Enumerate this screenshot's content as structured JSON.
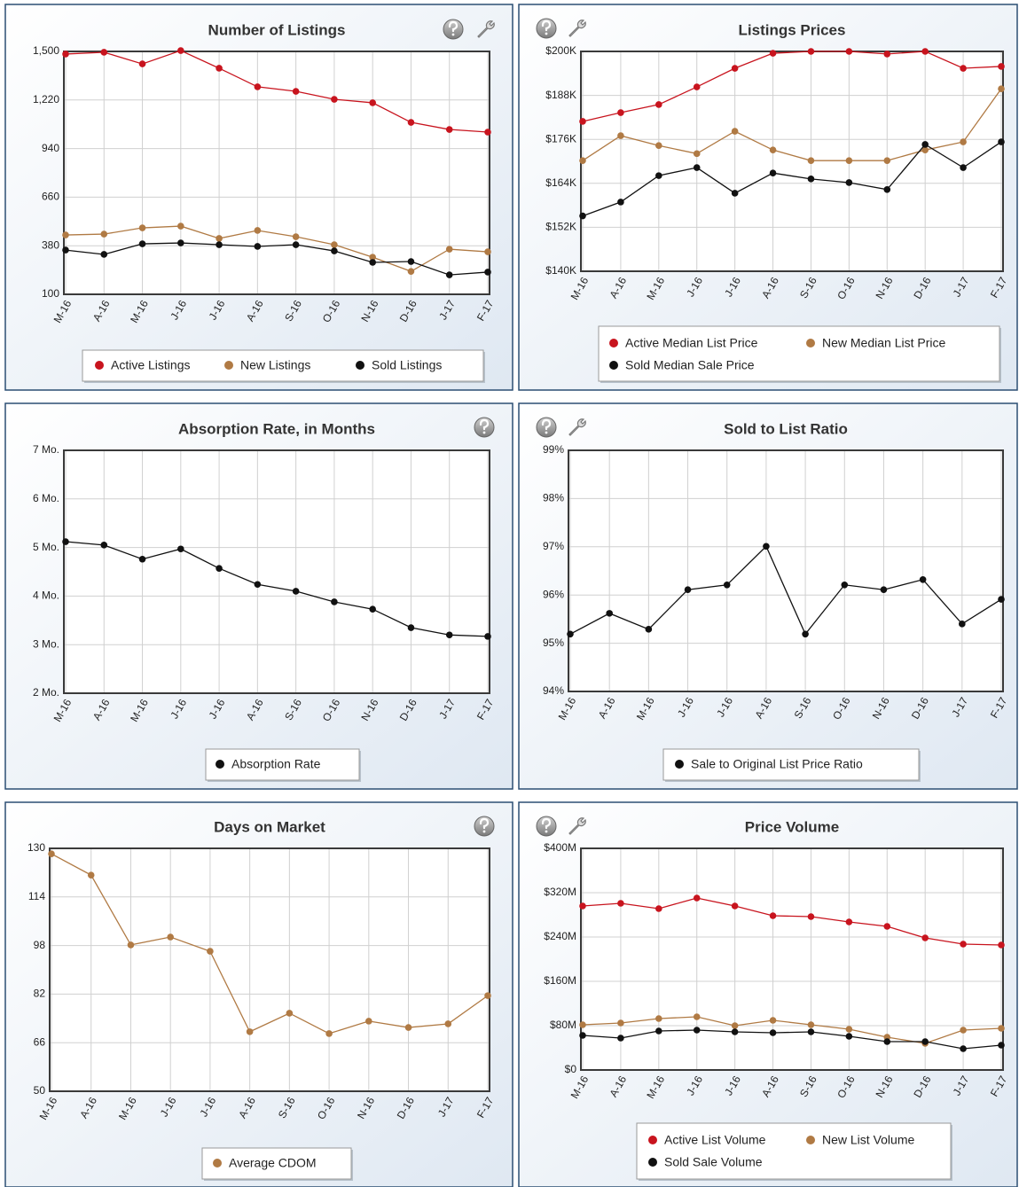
{
  "chart_data": [
    {
      "type": "line",
      "title": "Number of Listings",
      "categories": [
        "M-16",
        "A-16",
        "M-16",
        "J-16",
        "J-16",
        "A-16",
        "S-16",
        "O-16",
        "N-16",
        "D-16",
        "J-17",
        "F-17"
      ],
      "series": [
        {
          "name": "Active Listings",
          "color": "#c8141e",
          "values": [
            1485,
            1495,
            1428,
            1505,
            1403,
            1296,
            1270,
            1224,
            1204,
            1091,
            1050,
            1035
          ]
        },
        {
          "name": "New Listings",
          "color": "#b07a44",
          "values": [
            442,
            447,
            483,
            493,
            422,
            468,
            432,
            386,
            314,
            232,
            360,
            345
          ]
        },
        {
          "name": "Sold Listings",
          "color": "#111111",
          "values": [
            355,
            330,
            391,
            396,
            386,
            376,
            386,
            350,
            284,
            289,
            212,
            228
          ]
        }
      ],
      "ylim": [
        100,
        1500
      ],
      "yticks": [
        100,
        380,
        660,
        940,
        {
          "value": 1220,
          "label": "1,220"
        },
        {
          "value": 1500,
          "label": "1,500"
        }
      ],
      "grid": true
    },
    {
      "type": "line",
      "title": "Listings Prices",
      "categories": [
        "M-16",
        "A-16",
        "M-16",
        "J-16",
        "J-16",
        "A-16",
        "S-16",
        "O-16",
        "N-16",
        "D-16",
        "J-17",
        "F-17"
      ],
      "series": [
        {
          "name": "Active Median List Price",
          "color": "#c8141e",
          "values": [
            180900,
            183300,
            185500,
            190300,
            195400,
            199500,
            200000,
            200000,
            199300,
            200000,
            195400,
            195900
          ]
        },
        {
          "name": "New Median List Price",
          "color": "#b07a44",
          "values": [
            170200,
            177000,
            174300,
            172100,
            178200,
            173100,
            170200,
            170200,
            170200,
            173100,
            175300,
            189800
          ]
        },
        {
          "name": "Sold Median Sale Price",
          "color": "#111111",
          "values": [
            155100,
            158900,
            166100,
            168300,
            161300,
            166800,
            165200,
            164200,
            162300,
            174600,
            168300,
            175300
          ]
        }
      ],
      "ylim": [
        140000,
        200000
      ],
      "yticks": [
        {
          "value": 140000,
          "label": "$140K"
        },
        {
          "value": 152000,
          "label": "$152K"
        },
        {
          "value": 164000,
          "label": "$164K"
        },
        {
          "value": 176000,
          "label": "$176K"
        },
        {
          "value": 188000,
          "label": "$188K"
        },
        {
          "value": 200000,
          "label": "$200K"
        }
      ],
      "grid": true
    },
    {
      "type": "line",
      "title": "Absorption Rate, in Months",
      "categories": [
        "M-16",
        "A-16",
        "M-16",
        "J-16",
        "J-16",
        "A-16",
        "S-16",
        "O-16",
        "N-16",
        "D-16",
        "J-17",
        "F-17"
      ],
      "series": [
        {
          "name": "Absorption Rate",
          "color": "#111111",
          "values": [
            5.12,
            5.05,
            4.76,
            4.97,
            4.57,
            4.24,
            4.1,
            3.88,
            3.73,
            3.35,
            3.2,
            3.17
          ]
        }
      ],
      "ylim": [
        2,
        7
      ],
      "yticks": [
        {
          "value": 2,
          "label": "2 Mo."
        },
        {
          "value": 3,
          "label": "3 Mo."
        },
        {
          "value": 4,
          "label": "4 Mo."
        },
        {
          "value": 5,
          "label": "5 Mo."
        },
        {
          "value": 6,
          "label": "6 Mo."
        },
        {
          "value": 7,
          "label": "7 Mo."
        }
      ],
      "grid": true
    },
    {
      "type": "line",
      "title": "Sold to List Ratio",
      "categories": [
        "M-16",
        "A-16",
        "M-16",
        "J-16",
        "J-16",
        "A-16",
        "S-16",
        "O-16",
        "N-16",
        "D-16",
        "J-17",
        "F-17"
      ],
      "series": [
        {
          "name": "Sale to Original List Price Ratio",
          "color": "#111111",
          "values": [
            95.19,
            95.62,
            95.29,
            96.11,
            96.21,
            97.01,
            95.19,
            96.21,
            96.11,
            96.32,
            95.4,
            95.91
          ]
        }
      ],
      "ylim": [
        94,
        99
      ],
      "yticks": [
        {
          "value": 94,
          "label": "94%"
        },
        {
          "value": 95,
          "label": "95%"
        },
        {
          "value": 96,
          "label": "96%"
        },
        {
          "value": 97,
          "label": "97%"
        },
        {
          "value": 98,
          "label": "98%"
        },
        {
          "value": 99,
          "label": "99%"
        }
      ],
      "grid": true
    },
    {
      "type": "line",
      "title": "Days on Market",
      "categories": [
        "M-16",
        "A-16",
        "M-16",
        "J-16",
        "J-16",
        "A-16",
        "S-16",
        "O-16",
        "N-16",
        "D-16",
        "J-17",
        "F-17"
      ],
      "series": [
        {
          "name": "Average CDOM",
          "color": "#b07a44",
          "values": [
            128.2,
            121.2,
            98.2,
            100.8,
            96.1,
            69.6,
            75.7,
            69,
            73.1,
            71,
            72.2,
            81.5
          ]
        }
      ],
      "ylim": [
        50,
        130
      ],
      "yticks": [
        50,
        66,
        82,
        98,
        114,
        130
      ],
      "grid": true
    },
    {
      "type": "line",
      "title": "Price Volume",
      "categories": [
        "M-16",
        "A-16",
        "M-16",
        "J-16",
        "J-16",
        "A-16",
        "S-16",
        "O-16",
        "N-16",
        "D-16",
        "J-17",
        "F-17"
      ],
      "series": [
        {
          "name": "Active List Volume",
          "color": "#c8141e",
          "values": [
            296000000,
            300800000,
            291200000,
            310400000,
            296000000,
            278400000,
            276800000,
            267200000,
            259200000,
            238400000,
            227200000,
            225600000
          ]
        },
        {
          "name": "New List Volume",
          "color": "#b07a44",
          "values": [
            81600000,
            84800000,
            92800000,
            96000000,
            80000000,
            89600000,
            81600000,
            73600000,
            59200000,
            48000000,
            72000000,
            75200000
          ]
        },
        {
          "name": "Sold Sale Volume",
          "color": "#111111",
          "values": [
            62400000,
            57600000,
            70400000,
            72000000,
            68800000,
            67200000,
            68800000,
            60800000,
            51200000,
            51200000,
            38400000,
            44800000
          ]
        }
      ],
      "ylim": [
        0,
        400000000
      ],
      "yticks": [
        {
          "value": 0,
          "label": "$0"
        },
        {
          "value": 80000000,
          "label": "$80M"
        },
        {
          "value": 160000000,
          "label": "$160M"
        },
        {
          "value": 240000000,
          "label": "$240M"
        },
        {
          "value": 320000000,
          "label": "$320M"
        },
        {
          "value": 400000000,
          "label": "$400M"
        }
      ],
      "grid": true
    }
  ]
}
